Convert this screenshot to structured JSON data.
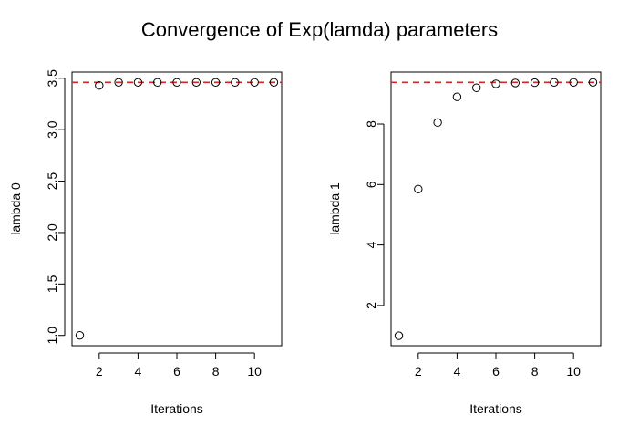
{
  "title": "Convergence of Exp(lamda) parameters",
  "chart_data": [
    {
      "type": "scatter",
      "xlabel": "Iterations",
      "ylabel": "lambda 0",
      "x": [
        1,
        2,
        3,
        4,
        5,
        6,
        7,
        8,
        9,
        10,
        11
      ],
      "y": [
        1.0,
        3.43,
        3.46,
        3.46,
        3.46,
        3.46,
        3.46,
        3.46,
        3.46,
        3.46,
        3.46
      ],
      "xlim": [
        0.6,
        11.4
      ],
      "ylim": [
        0.9,
        3.56
      ],
      "xticks": [
        2,
        4,
        6,
        8,
        10
      ],
      "xtick_labels": [
        "2",
        "4",
        "6",
        "8",
        "10"
      ],
      "yticks": [
        1.0,
        1.5,
        2.0,
        2.5,
        3.0,
        3.5
      ],
      "ytick_labels": [
        "1.0",
        "1.5",
        "2.0",
        "2.5",
        "3.0",
        "3.5"
      ],
      "reference_line": {
        "y": 3.46,
        "style": "dashed",
        "color": "#dd2222"
      },
      "marker": "open-circle",
      "grid": false
    },
    {
      "type": "scatter",
      "xlabel": "Iterations",
      "ylabel": "lambda 1",
      "x": [
        1,
        2,
        3,
        4,
        5,
        6,
        7,
        8,
        9,
        10,
        11
      ],
      "y": [
        1.0,
        5.85,
        8.05,
        8.9,
        9.2,
        9.33,
        9.36,
        9.37,
        9.38,
        9.38,
        9.38
      ],
      "xlim": [
        0.6,
        11.4
      ],
      "ylim": [
        0.67,
        9.72
      ],
      "xticks": [
        2,
        4,
        6,
        8,
        10
      ],
      "xtick_labels": [
        "2",
        "4",
        "6",
        "8",
        "10"
      ],
      "yticks": [
        2,
        4,
        6,
        8
      ],
      "ytick_labels": [
        "2",
        "4",
        "6",
        "8"
      ],
      "reference_line": {
        "y": 9.38,
        "style": "dashed",
        "color": "#dd2222"
      },
      "marker": "open-circle",
      "grid": false
    }
  ]
}
